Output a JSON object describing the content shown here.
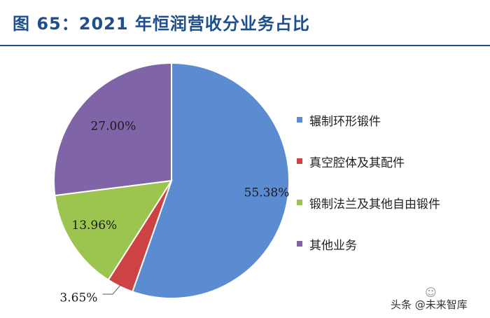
{
  "title": "图 65：2021 年恒润营收分业务占比",
  "chart_data": {
    "type": "pie",
    "title": "",
    "slices": [
      {
        "label": "辗制环形锻件",
        "value": 55.38,
        "display": "55.38%",
        "color": "#5b8bd0"
      },
      {
        "label": "真空腔体及其配件",
        "value": 3.65,
        "display": "3.65%",
        "color": "#cd4343"
      },
      {
        "label": "锻制法兰及其他自由锻件",
        "value": 13.96,
        "display": "13.96%",
        "color": "#9bc54f"
      },
      {
        "label": "其他业务",
        "value": 27.0,
        "display": "27.00%",
        "color": "#7f64a8"
      }
    ],
    "legend_position": "right"
  },
  "watermark": "头条 @未来智库"
}
